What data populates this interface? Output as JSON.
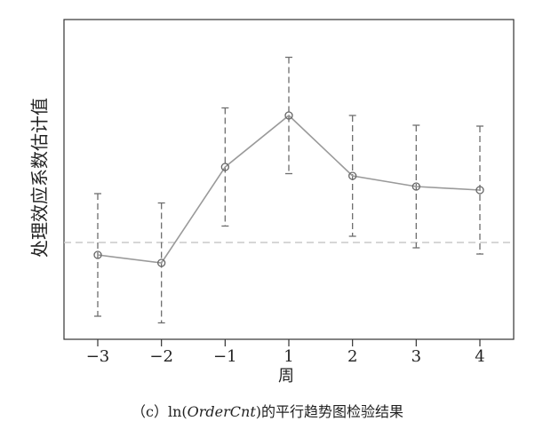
{
  "chart_data": {
    "type": "errorbar-line",
    "caption": [
      "（c）ln(",
      "OrderCnt",
      ")的平行趋势图检验结果"
    ],
    "xlabel": "周",
    "ylabel": "处理效应系数估计值",
    "categories": [
      "−3",
      "−2",
      "−1",
      "1",
      "2",
      "3",
      "4"
    ],
    "values": [
      -0.14,
      -0.23,
      0.85,
      1.43,
      0.75,
      0.63,
      0.59
    ],
    "errors": [
      0.69,
      0.675,
      0.665,
      0.655,
      0.68,
      0.69,
      0.72
    ],
    "ylim": [
      -1.09,
      2.51
    ],
    "reference_line": 0,
    "color": "#9a9a9a",
    "errorbar_color": "#6e6e6e",
    "reference_color": "#c8c8c8"
  }
}
